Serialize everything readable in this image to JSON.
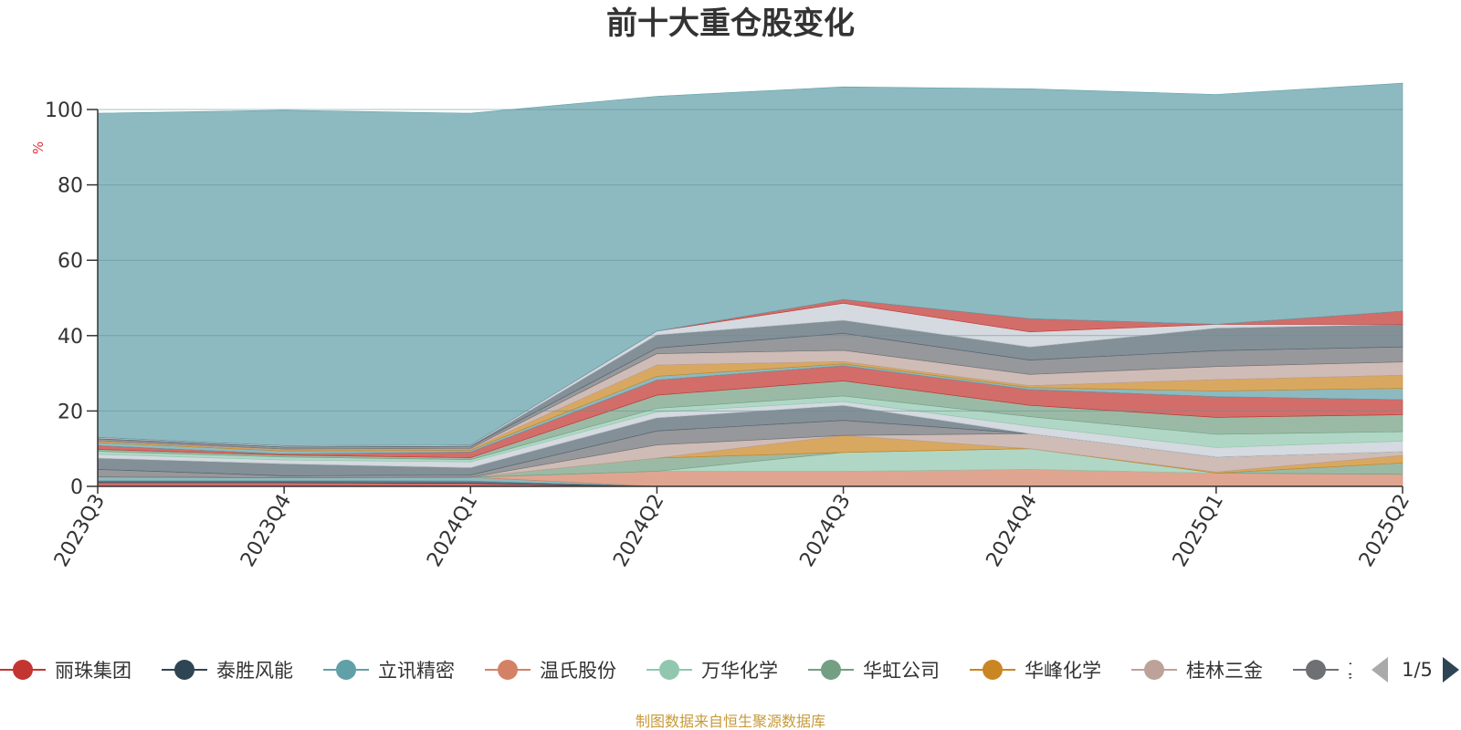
{
  "chart_data": {
    "type": "area",
    "title": "前十大重仓股变化",
    "ylabel": "%",
    "ylim": [
      0,
      100
    ],
    "yticks": [
      0,
      20,
      40,
      60,
      80,
      100
    ],
    "grid": true,
    "stacked": true,
    "categories": [
      "2023Q3",
      "2023Q4",
      "2024Q1",
      "2024Q2",
      "2024Q3",
      "2024Q4",
      "2025Q1",
      "2025Q2"
    ],
    "series": [
      {
        "name": "丽珠集团",
        "color": "#c23531",
        "values": [
          1.0,
          1.0,
          0.8,
          0.0,
          0.0,
          0.0,
          0.0,
          0.0
        ]
      },
      {
        "name": "泰胜风能",
        "color": "#2f4554",
        "values": [
          0.5,
          0.5,
          0.6,
          0.0,
          0.0,
          0.0,
          0.0,
          0.0
        ]
      },
      {
        "name": "立讯精密",
        "color": "#61a0a8",
        "values": [
          1.0,
          0.8,
          1.0,
          0.0,
          0.0,
          0.0,
          0.0,
          0.0
        ]
      },
      {
        "name": "温氏股份",
        "color": "#d48265",
        "values": [
          0.0,
          0.0,
          0.0,
          4.0,
          4.0,
          4.5,
          3.5,
          3.2
        ]
      },
      {
        "name": "万华化学",
        "color": "#91c7ae",
        "values": [
          0.0,
          0.0,
          0.0,
          0.0,
          5.0,
          5.5,
          0.0,
          0.0
        ]
      },
      {
        "name": "华虹公司",
        "color": "#749f83",
        "values": [
          0.0,
          0.0,
          0.0,
          3.5,
          0.0,
          0.0,
          0.0,
          3.0
        ]
      },
      {
        "name": "华峰化学",
        "color": "#ca8622",
        "values": [
          0.0,
          0.0,
          0.0,
          0.0,
          4.5,
          0.0,
          0.3,
          2.0
        ]
      },
      {
        "name": "桂林三金",
        "color": "#bda29a",
        "values": [
          0.0,
          0.0,
          0.0,
          3.5,
          0.0,
          4.0,
          4.0,
          1.0
        ]
      },
      {
        "name": "其他",
        "color": "#6e7074",
        "values": [
          2.0,
          0.5,
          0.6,
          3.7,
          4.0,
          0.0,
          0.0,
          0.0
        ]
      },
      {
        "color": "#546570",
        "values": [
          3.0,
          3.2,
          2.0,
          3.5,
          4.0,
          0.0,
          0.0,
          0.0
        ]
      },
      {
        "color": "#c4ccd3",
        "values": [
          1.0,
          1.0,
          1.5,
          1.5,
          1.0,
          2.0,
          2.5,
          2.8
        ]
      },
      {
        "color": "#91c7ae",
        "values": [
          0.8,
          0.8,
          0.6,
          1.0,
          1.5,
          2.5,
          3.5,
          2.5
        ]
      },
      {
        "color": "#749f83",
        "values": [
          0.5,
          0.5,
          0.5,
          3.5,
          4.0,
          3.0,
          4.5,
          4.5
        ]
      },
      {
        "color": "#c23531",
        "values": [
          1.0,
          0.3,
          1.5,
          4.0,
          4.0,
          4.2,
          5.5,
          4.0
        ]
      },
      {
        "color": "#61a0a8",
        "values": [
          0.8,
          0.8,
          0.5,
          1.0,
          0.5,
          0.5,
          1.5,
          3.0
        ]
      },
      {
        "color": "#ca8622",
        "values": [
          0.3,
          0.3,
          0.3,
          3.0,
          0.6,
          0.5,
          3.0,
          3.5
        ]
      },
      {
        "color": "#bda29a",
        "values": [
          0.2,
          0.2,
          0.2,
          3.0,
          3.0,
          3.0,
          3.5,
          3.5
        ]
      },
      {
        "color": "#6e7074",
        "values": [
          0.5,
          0.5,
          0.5,
          1.5,
          4.5,
          3.8,
          4.2,
          4.0
        ]
      },
      {
        "color": "#546570",
        "values": [
          0.2,
          0.2,
          0.2,
          3.5,
          3.5,
          3.5,
          6.0,
          6.0
        ]
      },
      {
        "color": "#c4ccd3",
        "values": [
          0.2,
          0.2,
          0.2,
          1.0,
          4.5,
          4.0,
          1.0,
          0.0
        ]
      },
      {
        "color": "#c23531",
        "values": [
          0.0,
          0.0,
          0.0,
          0.0,
          1.0,
          3.5,
          0.0,
          3.5
        ]
      },
      {
        "color": "#61a0a8",
        "values": [
          86.0,
          89.0,
          88.0,
          62.3,
          56.4,
          61.0,
          61.0,
          60.5
        ]
      }
    ]
  },
  "legend": {
    "items": [
      {
        "label": "丽珠集团",
        "color": "#c23531"
      },
      {
        "label": "泰胜风能",
        "color": "#2f4554"
      },
      {
        "label": "立讯精密",
        "color": "#61a0a8"
      },
      {
        "label": "温氏股份",
        "color": "#d48265"
      },
      {
        "label": "万华化学",
        "color": "#91c7ae"
      },
      {
        "label": "华虹公司",
        "color": "#749f83"
      },
      {
        "label": "华峰化学",
        "color": "#ca8622"
      },
      {
        "label": "桂林三金",
        "color": "#bda29a"
      },
      {
        "label": "其他",
        "color": "#6e7074"
      }
    ],
    "page_indicator": "1/5"
  },
  "footer": "制图数据来自恒生聚源数据库"
}
